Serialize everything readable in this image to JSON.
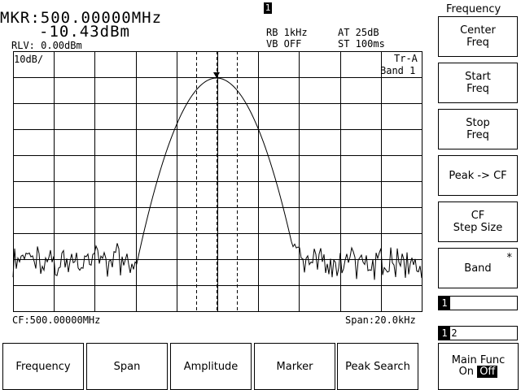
{
  "marker": {
    "frequency": "MKR:500.00000MHz",
    "amplitude": "-10.43dBm",
    "active_indicator": "1"
  },
  "status": {
    "ref_level": "RLV: 0.00dBm",
    "rbw": "RB 1kHz",
    "vbw": "VB OFF",
    "atten": "AT 25dB",
    "sweep_time": "ST 100ms",
    "scale": "10dB/",
    "trace": "Tr-A",
    "band": "Band 1",
    "center_freq": "CF:500.00000MHz",
    "span": "Span:20.0kHz"
  },
  "softkey_menu": {
    "title": "Frequency",
    "keys": [
      {
        "line1": "Center",
        "line2": "Freq"
      },
      {
        "line1": "Start",
        "line2": "Freq"
      },
      {
        "line1": "Stop",
        "line2": "Freq"
      },
      {
        "line1": "Peak -> CF",
        "line2": ""
      },
      {
        "line1": "CF",
        "line2": "Step Size"
      },
      {
        "line1": "Band",
        "line2": "",
        "mark": "*"
      }
    ],
    "band_indicator": "1",
    "page_indicator": [
      "1",
      "2"
    ]
  },
  "bottom_menu": {
    "buttons": [
      "Frequency",
      "Span",
      "Amplitude",
      "Marker",
      "Peak Search"
    ],
    "main_func_label": "Main Func",
    "main_func_on": "On",
    "main_func_off": "Off"
  },
  "colors": {
    "foreground": "#000000",
    "background": "#ffffff"
  }
}
